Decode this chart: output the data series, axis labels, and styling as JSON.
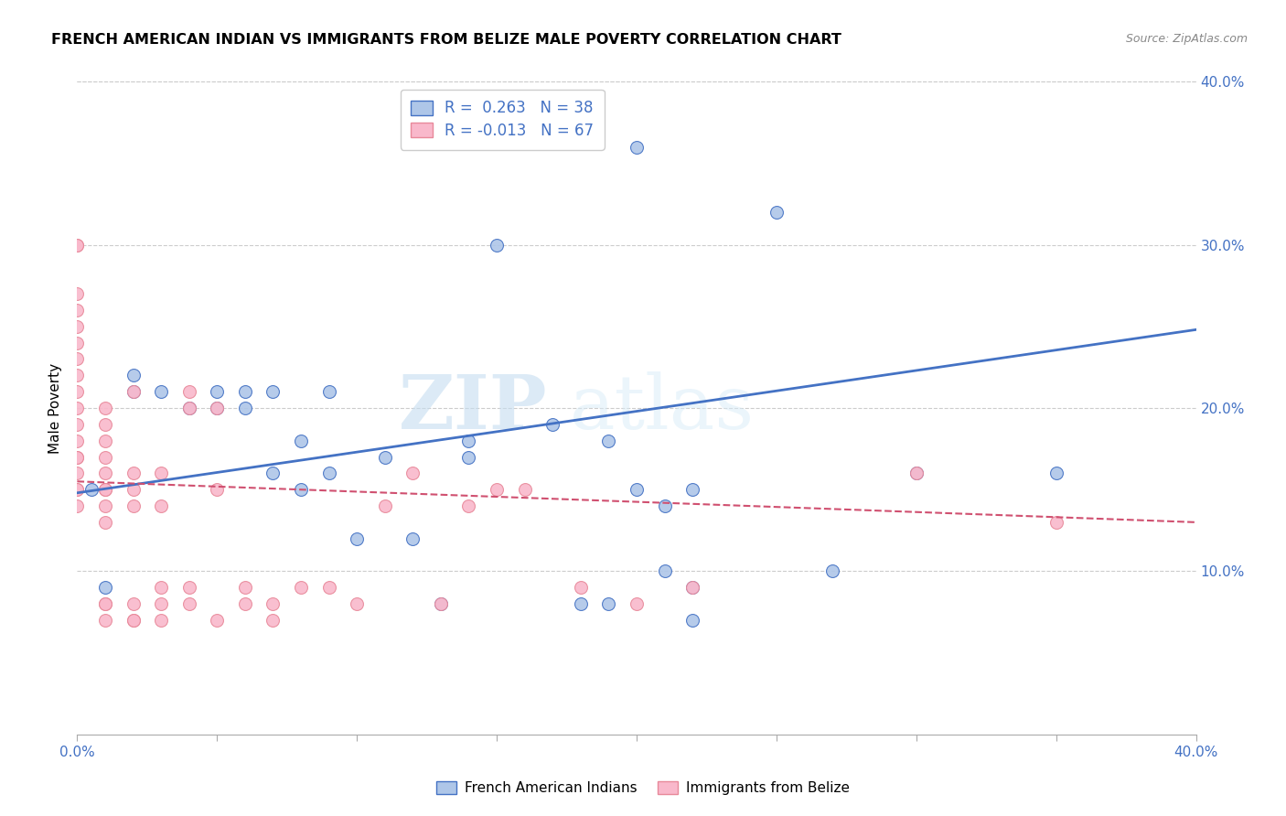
{
  "title": "FRENCH AMERICAN INDIAN VS IMMIGRANTS FROM BELIZE MALE POVERTY CORRELATION CHART",
  "source": "Source: ZipAtlas.com",
  "ylabel": "Male Poverty",
  "xmin": 0.0,
  "xmax": 0.4,
  "ymin": 0.0,
  "ymax": 0.4,
  "right_y_ticks": [
    0.1,
    0.2,
    0.3,
    0.4
  ],
  "right_y_labels": [
    "10.0%",
    "20.0%",
    "30.0%",
    "40.0%"
  ],
  "legend_label_blue": "French American Indians",
  "legend_label_pink": "Immigrants from Belize",
  "color_blue": "#aec6e8",
  "color_pink": "#f9b8cb",
  "line_blue": "#4472c4",
  "line_pink_dashed": "#e8899a",
  "line_solid_pink": "#d05070",
  "watermark_zip": "ZIP",
  "watermark_atlas": "atlas",
  "blue_scatter_x": [
    0.005,
    0.01,
    0.02,
    0.02,
    0.03,
    0.04,
    0.05,
    0.05,
    0.06,
    0.06,
    0.07,
    0.07,
    0.08,
    0.08,
    0.09,
    0.09,
    0.1,
    0.11,
    0.12,
    0.13,
    0.14,
    0.14,
    0.15,
    0.17,
    0.18,
    0.19,
    0.19,
    0.2,
    0.21,
    0.22,
    0.22,
    0.25,
    0.27,
    0.3,
    0.35,
    0.2,
    0.21,
    0.22
  ],
  "blue_scatter_y": [
    0.15,
    0.09,
    0.21,
    0.22,
    0.21,
    0.2,
    0.21,
    0.2,
    0.2,
    0.21,
    0.16,
    0.21,
    0.18,
    0.15,
    0.16,
    0.21,
    0.12,
    0.17,
    0.12,
    0.08,
    0.18,
    0.17,
    0.3,
    0.19,
    0.08,
    0.08,
    0.18,
    0.15,
    0.14,
    0.15,
    0.07,
    0.32,
    0.1,
    0.16,
    0.16,
    0.36,
    0.1,
    0.09
  ],
  "pink_scatter_x": [
    0.0,
    0.0,
    0.0,
    0.0,
    0.0,
    0.0,
    0.0,
    0.0,
    0.0,
    0.0,
    0.0,
    0.0,
    0.0,
    0.0,
    0.0,
    0.0,
    0.0,
    0.0,
    0.01,
    0.01,
    0.01,
    0.01,
    0.01,
    0.01,
    0.01,
    0.01,
    0.01,
    0.01,
    0.01,
    0.01,
    0.02,
    0.02,
    0.02,
    0.02,
    0.02,
    0.02,
    0.02,
    0.03,
    0.03,
    0.03,
    0.03,
    0.03,
    0.04,
    0.04,
    0.04,
    0.04,
    0.05,
    0.05,
    0.05,
    0.06,
    0.06,
    0.07,
    0.07,
    0.08,
    0.09,
    0.1,
    0.11,
    0.12,
    0.13,
    0.14,
    0.15,
    0.16,
    0.18,
    0.2,
    0.22,
    0.3,
    0.35
  ],
  "pink_scatter_y": [
    0.14,
    0.15,
    0.15,
    0.16,
    0.17,
    0.17,
    0.18,
    0.19,
    0.2,
    0.21,
    0.22,
    0.23,
    0.24,
    0.25,
    0.26,
    0.27,
    0.3,
    0.3,
    0.07,
    0.08,
    0.08,
    0.13,
    0.14,
    0.15,
    0.15,
    0.16,
    0.17,
    0.18,
    0.19,
    0.2,
    0.07,
    0.07,
    0.08,
    0.14,
    0.15,
    0.16,
    0.21,
    0.07,
    0.08,
    0.09,
    0.14,
    0.16,
    0.08,
    0.09,
    0.2,
    0.21,
    0.07,
    0.15,
    0.2,
    0.08,
    0.09,
    0.07,
    0.08,
    0.09,
    0.09,
    0.08,
    0.14,
    0.16,
    0.08,
    0.14,
    0.15,
    0.15,
    0.09,
    0.08,
    0.09,
    0.16,
    0.13
  ],
  "blue_line_x": [
    0.0,
    0.4
  ],
  "blue_line_y_start": 0.148,
  "blue_line_y_end": 0.248,
  "pink_line_x": [
    0.0,
    0.4
  ],
  "pink_line_y_start": 0.155,
  "pink_line_y_end": 0.13,
  "x_tick_positions": [
    0.0,
    0.05,
    0.1,
    0.15,
    0.2,
    0.25,
    0.3,
    0.35,
    0.4
  ],
  "x_tick_labels_show": [
    "0.0%",
    "",
    "",
    "",
    "",
    "",
    "",
    "",
    "40.0%"
  ]
}
